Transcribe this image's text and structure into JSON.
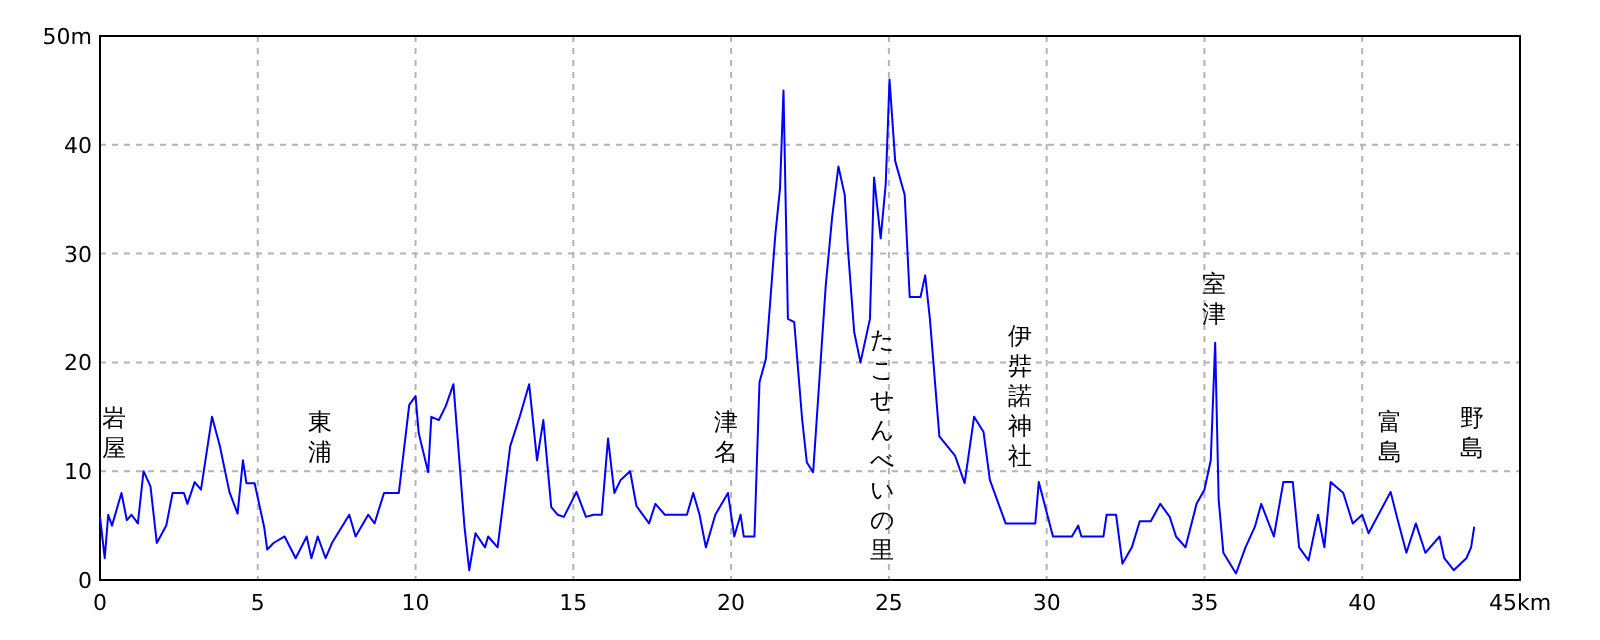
{
  "chart_data": {
    "type": "line",
    "color": "#0000ff",
    "grid": true,
    "xlim": [
      0,
      45
    ],
    "ylim": [
      0,
      50
    ],
    "xticks": [
      0,
      5,
      10,
      15,
      20,
      25,
      30,
      35,
      40,
      {
        "value": 45,
        "label": "45km"
      }
    ],
    "yticks": [
      0,
      10,
      20,
      30,
      40,
      {
        "value": 50,
        "label": "50m"
      }
    ],
    "annotations": [
      "岩屋",
      "東浦",
      "津名",
      "たこせんべいの里",
      "伊弉諾神社",
      "室津",
      "富島",
      "野島"
    ],
    "x": [
      0,
      0.15,
      0.26,
      0.38,
      0.68,
      0.85,
      1.0,
      1.2,
      1.38,
      1.6,
      1.8,
      2.1,
      2.3,
      2.66,
      2.77,
      3.0,
      3.2,
      3.55,
      3.8,
      4.1,
      4.36,
      4.53,
      4.64,
      4.9,
      5.2,
      5.3,
      5.5,
      5.85,
      6.2,
      6.55,
      6.7,
      6.9,
      7.15,
      7.35,
      7.9,
      8.1,
      8.5,
      8.7,
      9.0,
      9.47,
      9.8,
      10.0,
      10.1,
      10.4,
      10.5,
      10.74,
      10.96,
      11.2,
      11.55,
      11.7,
      11.9,
      12.2,
      12.3,
      12.6,
      13.0,
      13.3,
      13.6,
      13.85,
      14.05,
      14.3,
      14.5,
      14.7,
      15.1,
      15.4,
      15.64,
      15.9,
      16.1,
      16.3,
      16.5,
      16.8,
      17.0,
      17.4,
      17.6,
      17.9,
      18.6,
      18.8,
      19.0,
      19.2,
      19.5,
      19.9,
      20.1,
      20.3,
      20.4,
      20.74,
      20.9,
      21.1,
      21.4,
      21.55,
      21.66,
      21.8,
      22.0,
      22.25,
      22.4,
      22.6,
      23.0,
      23.2,
      23.4,
      23.6,
      23.7,
      23.9,
      24.1,
      24.4,
      24.53,
      24.74,
      24.9,
      25.02,
      25.2,
      25.5,
      25.66,
      26.0,
      26.15,
      26.3,
      26.6,
      27.1,
      27.4,
      27.7,
      28.0,
      28.2,
      28.7,
      29.64,
      29.75,
      30.2,
      30.8,
      31.0,
      31.1,
      31.8,
      31.9,
      32.2,
      32.4,
      32.7,
      32.95,
      33.3,
      33.6,
      33.9,
      34.1,
      34.4,
      34.75,
      35.0,
      35.2,
      35.34,
      35.45,
      35.6,
      36.0,
      36.3,
      36.6,
      36.8,
      37.2,
      37.5,
      37.8,
      38.0,
      38.3,
      38.6,
      38.8,
      39.0,
      39.4,
      39.7,
      40.0,
      40.2,
      40.9,
      41.1,
      41.4,
      41.7,
      42.0,
      42.45,
      42.6,
      42.9,
      43.3,
      43.45,
      43.55
    ],
    "values": [
      5.8,
      2,
      6,
      5,
      8,
      5.5,
      6,
      5.2,
      10,
      8.6,
      3.4,
      5,
      8,
      8,
      7,
      9,
      8.3,
      15,
      12.3,
      8.1,
      6.1,
      11,
      8.9,
      8.9,
      4.9,
      2.8,
      3.4,
      4,
      2,
      4,
      2,
      4,
      2,
      3.4,
      6,
      4,
      6,
      5.2,
      8,
      8,
      16.1,
      16.9,
      13.5,
      9.9,
      15,
      14.7,
      16,
      18,
      4.9,
      0.9,
      4.3,
      3,
      4,
      3,
      12.3,
      15,
      18,
      11,
      14.7,
      6.7,
      6,
      5.8,
      8.1,
      5.8,
      6,
      6,
      13,
      8,
      9.2,
      10,
      6.8,
      5.2,
      7,
      6,
      6,
      8,
      6,
      3,
      6,
      8,
      4,
      6,
      4,
      4,
      18.2,
      20.3,
      31.7,
      36,
      45,
      24,
      23.7,
      14.8,
      10.8,
      9.9,
      27.1,
      33.3,
      38,
      35.4,
      30.5,
      22.8,
      20,
      24,
      37,
      31.4,
      36.4,
      46,
      38.5,
      35.4,
      26,
      26,
      28,
      24,
      13.2,
      11.4,
      8.9,
      15,
      13.6,
      9.2,
      5.2,
      5.2,
      9,
      4,
      4,
      5,
      4,
      4,
      6,
      6,
      1.5,
      3,
      5.4,
      5.4,
      7,
      5.8,
      4,
      3,
      7,
      8.3,
      11,
      21.8,
      7.4,
      2.5,
      0.6,
      3,
      4.9,
      7,
      4,
      9,
      9,
      3,
      1.8,
      6,
      3,
      9,
      8,
      5.2,
      6,
      4.3,
      8.1,
      5.8,
      2.5,
      5.2,
      2.5,
      4,
      2,
      0.9,
      2,
      3,
      4.9
    ]
  }
}
